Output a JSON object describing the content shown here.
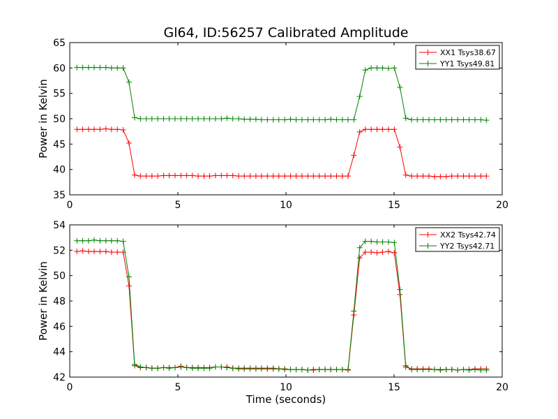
{
  "chart_data": [
    {
      "type": "line",
      "title": "Gl64, ID:56257 Calibrated Amplitude",
      "xlabel": "",
      "ylabel": "Power in Kelvin",
      "xlim": [
        0,
        20
      ],
      "ylim": [
        35,
        65
      ],
      "xticks": [
        0,
        5,
        10,
        15,
        20
      ],
      "yticks": [
        35,
        40,
        45,
        50,
        55,
        60,
        65
      ],
      "grid": false,
      "legend_position": "top-right",
      "series": [
        {
          "name": "XX1 Tsys38.67",
          "color": "#ff0000",
          "x": [
            0.33,
            0.6,
            0.87,
            1.13,
            1.4,
            1.67,
            1.93,
            2.2,
            2.47,
            2.74,
            3.0,
            3.27,
            3.54,
            3.8,
            4.07,
            4.34,
            4.6,
            4.87,
            5.14,
            5.41,
            5.67,
            5.94,
            6.21,
            6.47,
            6.74,
            7.01,
            7.27,
            7.54,
            7.81,
            8.07,
            8.34,
            8.61,
            8.87,
            9.14,
            9.41,
            9.67,
            9.94,
            10.21,
            10.47,
            10.74,
            11.01,
            11.27,
            11.54,
            11.81,
            12.07,
            12.34,
            12.61,
            12.87,
            13.14,
            13.41,
            13.67,
            13.94,
            14.21,
            14.47,
            14.74,
            15.01,
            15.27,
            15.54,
            15.81,
            16.07,
            16.34,
            16.61,
            16.87,
            17.14,
            17.41,
            17.67,
            17.94,
            18.21,
            18.47,
            18.74,
            19.01,
            19.27
          ],
          "y": [
            47.9,
            47.9,
            47.9,
            47.9,
            47.9,
            48.0,
            47.9,
            47.9,
            47.8,
            45.2,
            38.9,
            38.7,
            38.7,
            38.7,
            38.7,
            38.8,
            38.8,
            38.8,
            38.8,
            38.8,
            38.8,
            38.7,
            38.7,
            38.7,
            38.8,
            38.8,
            38.8,
            38.8,
            38.7,
            38.7,
            38.7,
            38.7,
            38.7,
            38.7,
            38.7,
            38.7,
            38.7,
            38.7,
            38.7,
            38.7,
            38.7,
            38.7,
            38.7,
            38.7,
            38.7,
            38.7,
            38.7,
            38.7,
            42.8,
            47.4,
            47.9,
            47.9,
            47.9,
            47.9,
            47.9,
            47.9,
            44.4,
            38.9,
            38.7,
            38.7,
            38.7,
            38.7,
            38.6,
            38.6,
            38.6,
            38.7,
            38.7,
            38.7,
            38.7,
            38.7,
            38.7,
            38.7
          ]
        },
        {
          "name": "YY1 Tsys49.81",
          "color": "#008000",
          "x": [
            0.33,
            0.6,
            0.87,
            1.13,
            1.4,
            1.67,
            1.93,
            2.2,
            2.47,
            2.74,
            3.0,
            3.27,
            3.54,
            3.8,
            4.07,
            4.34,
            4.6,
            4.87,
            5.14,
            5.41,
            5.67,
            5.94,
            6.21,
            6.47,
            6.74,
            7.01,
            7.27,
            7.54,
            7.81,
            8.07,
            8.34,
            8.61,
            8.87,
            9.14,
            9.41,
            9.67,
            9.94,
            10.21,
            10.47,
            10.74,
            11.01,
            11.27,
            11.54,
            11.81,
            12.07,
            12.34,
            12.61,
            12.87,
            13.14,
            13.41,
            13.67,
            13.94,
            14.21,
            14.47,
            14.74,
            15.01,
            15.27,
            15.54,
            15.81,
            16.07,
            16.34,
            16.61,
            16.87,
            17.14,
            17.41,
            17.67,
            17.94,
            18.21,
            18.47,
            18.74,
            19.01,
            19.27
          ],
          "y": [
            60.1,
            60.1,
            60.1,
            60.1,
            60.1,
            60.1,
            60.0,
            60.0,
            60.0,
            57.2,
            50.2,
            50.0,
            50.0,
            50.0,
            50.0,
            50.0,
            50.0,
            50.0,
            50.0,
            50.0,
            50.0,
            50.0,
            50.0,
            50.0,
            50.0,
            50.0,
            50.1,
            50.0,
            50.0,
            49.9,
            49.9,
            49.9,
            49.8,
            49.8,
            49.8,
            49.8,
            49.8,
            49.9,
            49.8,
            49.8,
            49.8,
            49.8,
            49.8,
            49.8,
            49.9,
            49.8,
            49.8,
            49.8,
            49.8,
            54.4,
            59.6,
            60.0,
            60.0,
            60.0,
            59.9,
            60.0,
            56.2,
            50.1,
            49.8,
            49.8,
            49.8,
            49.8,
            49.8,
            49.8,
            49.8,
            49.8,
            49.8,
            49.8,
            49.8,
            49.8,
            49.8,
            49.7
          ]
        }
      ]
    },
    {
      "type": "line",
      "title": "",
      "xlabel": "Time (seconds)",
      "ylabel": "Power in Kelvin",
      "xlim": [
        0,
        20
      ],
      "ylim": [
        42,
        54
      ],
      "xticks": [
        0,
        5,
        10,
        15,
        20
      ],
      "yticks": [
        42,
        44,
        46,
        48,
        50,
        52,
        54
      ],
      "grid": false,
      "legend_position": "top-right",
      "series": [
        {
          "name": "XX2 Tsys42.74",
          "color": "#ff0000",
          "x": [
            0.33,
            0.6,
            0.87,
            1.13,
            1.4,
            1.67,
            1.93,
            2.2,
            2.47,
            2.74,
            3.0,
            3.27,
            3.54,
            3.8,
            4.07,
            4.34,
            4.6,
            4.87,
            5.14,
            5.41,
            5.67,
            5.94,
            6.21,
            6.47,
            6.74,
            7.01,
            7.27,
            7.54,
            7.81,
            8.07,
            8.34,
            8.61,
            8.87,
            9.14,
            9.41,
            9.67,
            9.94,
            10.21,
            10.47,
            10.74,
            11.01,
            11.27,
            11.54,
            11.81,
            12.07,
            12.34,
            12.61,
            12.87,
            13.14,
            13.41,
            13.67,
            13.94,
            14.21,
            14.47,
            14.74,
            15.01,
            15.27,
            15.54,
            15.81,
            16.07,
            16.34,
            16.61,
            16.87,
            17.14,
            17.41,
            17.67,
            17.94,
            18.21,
            18.47,
            18.74,
            19.01,
            19.27
          ],
          "y": [
            51.9,
            51.95,
            51.9,
            51.9,
            51.9,
            51.9,
            51.85,
            51.85,
            51.85,
            49.2,
            42.9,
            42.75,
            42.75,
            42.7,
            42.7,
            42.75,
            42.75,
            42.75,
            42.85,
            42.75,
            42.75,
            42.75,
            42.75,
            42.75,
            42.8,
            42.8,
            42.8,
            42.7,
            42.7,
            42.7,
            42.7,
            42.7,
            42.7,
            42.7,
            42.7,
            42.65,
            42.65,
            42.6,
            42.6,
            42.6,
            42.55,
            42.55,
            42.6,
            42.6,
            42.6,
            42.6,
            42.6,
            42.55,
            46.9,
            51.4,
            51.85,
            51.85,
            51.8,
            51.85,
            51.9,
            51.8,
            48.5,
            42.8,
            42.65,
            42.65,
            42.65,
            42.65,
            42.6,
            42.6,
            42.6,
            42.6,
            42.55,
            42.6,
            42.6,
            42.65,
            42.65,
            42.65
          ]
        },
        {
          "name": "YY2 Tsys42.71",
          "color": "#008000",
          "x": [
            0.33,
            0.6,
            0.87,
            1.13,
            1.4,
            1.67,
            1.93,
            2.2,
            2.47,
            2.74,
            3.0,
            3.27,
            3.54,
            3.8,
            4.07,
            4.34,
            4.6,
            4.87,
            5.14,
            5.41,
            5.67,
            5.94,
            6.21,
            6.47,
            6.74,
            7.01,
            7.27,
            7.54,
            7.81,
            8.07,
            8.34,
            8.61,
            8.87,
            9.14,
            9.41,
            9.67,
            9.94,
            10.21,
            10.47,
            10.74,
            11.01,
            11.27,
            11.54,
            11.81,
            12.07,
            12.34,
            12.61,
            12.87,
            13.14,
            13.41,
            13.67,
            13.94,
            14.21,
            14.47,
            14.74,
            15.01,
            15.27,
            15.54,
            15.81,
            16.07,
            16.34,
            16.61,
            16.87,
            17.14,
            17.41,
            17.67,
            17.94,
            18.21,
            18.47,
            18.74,
            19.01,
            19.27
          ],
          "y": [
            52.75,
            52.75,
            52.75,
            52.8,
            52.75,
            52.75,
            52.75,
            52.75,
            52.7,
            49.9,
            43.0,
            42.8,
            42.75,
            42.7,
            42.7,
            42.75,
            42.7,
            42.75,
            42.8,
            42.75,
            42.7,
            42.7,
            42.7,
            42.7,
            42.8,
            42.8,
            42.75,
            42.7,
            42.65,
            42.65,
            42.65,
            42.65,
            42.65,
            42.65,
            42.65,
            42.65,
            42.6,
            42.6,
            42.6,
            42.6,
            42.55,
            42.6,
            42.6,
            42.6,
            42.6,
            42.6,
            42.6,
            42.6,
            47.2,
            52.2,
            52.7,
            52.7,
            52.65,
            52.65,
            52.65,
            52.6,
            48.9,
            42.9,
            42.6,
            42.6,
            42.6,
            42.6,
            42.6,
            42.55,
            42.6,
            42.6,
            42.55,
            42.6,
            42.55,
            42.6,
            42.55,
            42.55
          ]
        }
      ]
    }
  ]
}
